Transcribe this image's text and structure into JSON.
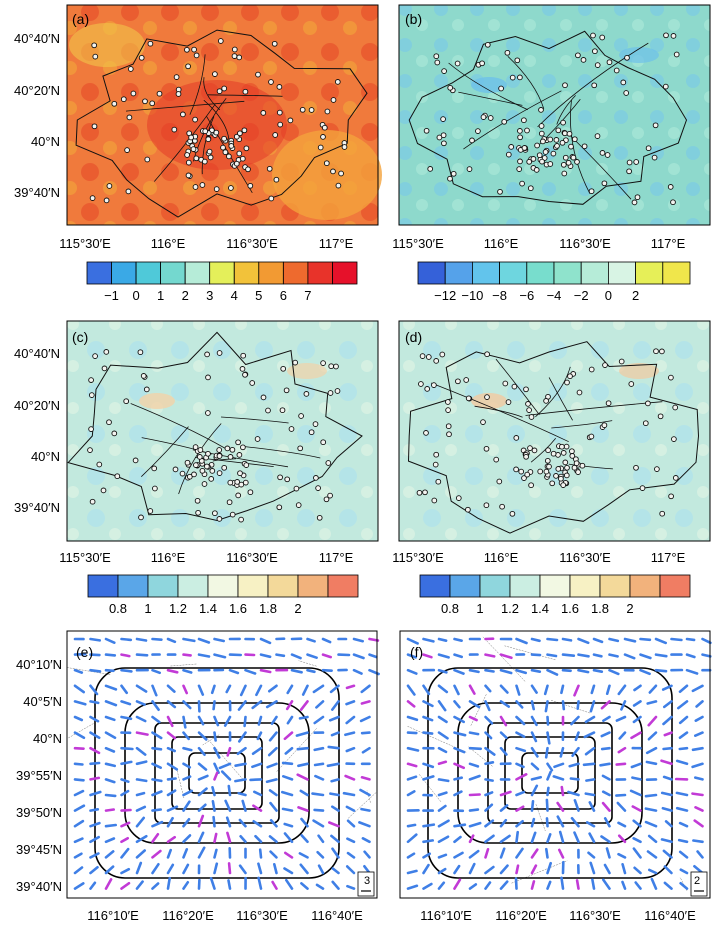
{
  "figure": {
    "panels": [
      {
        "letter": "(a)",
        "ylabels": [
          "40°40′N",
          "40°20′N",
          "40°N",
          "39°40′N"
        ],
        "xlabels": [
          "115°30′E",
          "116°E",
          "116°30′E",
          "117°E"
        ],
        "colorbar": {
          "labels": [
            "−1",
            "0",
            "1",
            "2",
            "3",
            "4",
            "5",
            "6",
            "7"
          ],
          "colors": [
            "#3a6fe0",
            "#3aa9e6",
            "#4fc9d9",
            "#74d8cf",
            "#b6ecd8",
            "#e4ef5a",
            "#f2c23a",
            "#f29a33",
            "#ee6a2e",
            "#e8332a",
            "#e6112a"
          ]
        }
      },
      {
        "letter": "(b)",
        "ylabels": [],
        "xlabels": [
          "115°30′E",
          "116°E",
          "116°30′E",
          "117°E"
        ],
        "colorbar": {
          "labels": [
            "−12",
            "−10",
            "−8",
            "−6",
            "−4",
            "−2",
            "0",
            "2"
          ],
          "colors": [
            "#3561d9",
            "#55a2ea",
            "#62c4ec",
            "#6ed6df",
            "#78ddcd",
            "#8fe3cc",
            "#b6ecd8",
            "#d8f4e4",
            "#e6ef58",
            "#f0e64b"
          ]
        }
      },
      {
        "letter": "(c)",
        "ylabels": [
          "40°40′N",
          "40°20′N",
          "40°N",
          "39°40′N"
        ],
        "xlabels": [
          "115°30′E",
          "116°E",
          "116°30′E",
          "117°E"
        ],
        "colorbar": {
          "labels": [
            "0.8",
            "1",
            "1.2",
            "1.4",
            "1.6",
            "1.8",
            "2"
          ],
          "colors": [
            "#3a6fe0",
            "#5aa6e8",
            "#8fd6dd",
            "#cbeee2",
            "#f2f8e3",
            "#f7f1c4",
            "#f3d99a",
            "#f2b27c",
            "#f07d63"
          ]
        }
      },
      {
        "letter": "(d)",
        "ylabels": [],
        "xlabels": [
          "115°30′E",
          "116°E",
          "116°30′E",
          "117°E"
        ],
        "colorbar": {
          "labels": [
            "0.8",
            "1",
            "1.2",
            "1.4",
            "1.6",
            "1.8",
            "2"
          ],
          "colors": [
            "#3a6fe0",
            "#5aa6e8",
            "#8fd6dd",
            "#cbeee2",
            "#f2f8e3",
            "#f7f1c4",
            "#f3d99a",
            "#f2b27c",
            "#f07d63"
          ]
        }
      },
      {
        "letter": "(e)",
        "ylabels": [
          "40°10′N",
          "40°5′N",
          "40°N",
          "39°55′N",
          "39°50′N",
          "39°45′N",
          "39°40′N"
        ],
        "xlabels": [
          "116°10′E",
          "116°20′E",
          "116°30′E",
          "116°40′E"
        ],
        "ref_vector": "3"
      },
      {
        "letter": "(f)",
        "ylabels": [],
        "xlabels": [
          "116°10′E",
          "116°20′E",
          "116°30′E",
          "116°40′E"
        ],
        "ref_vector": "2"
      }
    ],
    "colors": {
      "map_a": "#f07a3c",
      "map_b": "#8ed9cc",
      "map_cd": "#c2e9de",
      "vector_blue": "#3f7fe6",
      "vector_magenta": "#c23ad6",
      "boundary": "#111111"
    }
  }
}
